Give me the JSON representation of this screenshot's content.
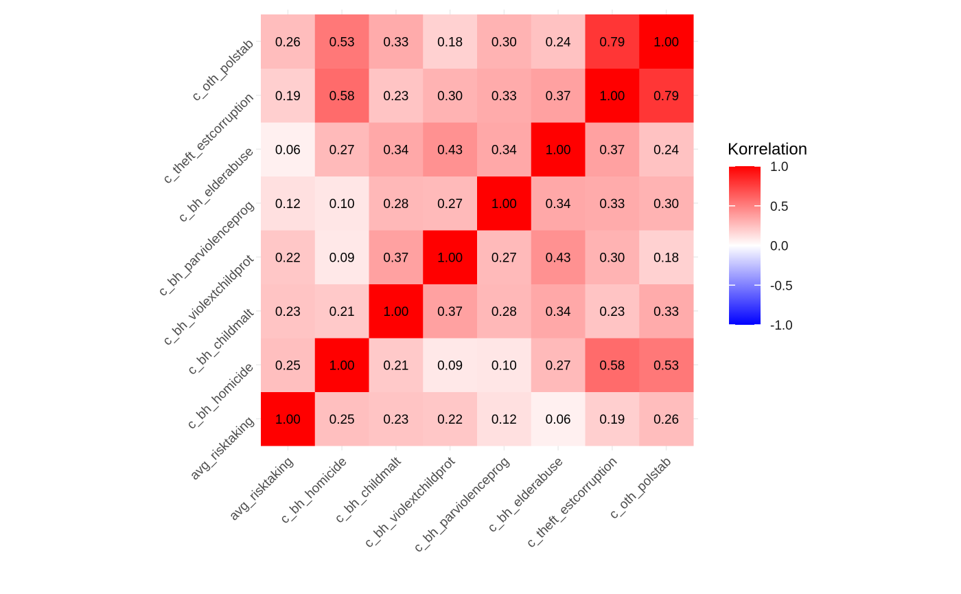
{
  "chart_data": {
    "type": "heatmap",
    "x_categories": [
      "avg_risktaking",
      "c_bh_homicide",
      "c_bh_childmalt",
      "c_bh_violextchildprot",
      "c_bh_parviolenceprog",
      "c_bh_elderabuse",
      "c_theft_estcorruption",
      "c_oth_polstab"
    ],
    "y_categories": [
      "avg_risktaking",
      "c_bh_homicide",
      "c_bh_childmalt",
      "c_bh_violextchildprot",
      "c_bh_parviolenceprog",
      "c_bh_elderabuse",
      "c_theft_estcorruption",
      "c_oth_polstab"
    ],
    "matrix": [
      [
        1.0,
        0.25,
        0.23,
        0.22,
        0.12,
        0.06,
        0.19,
        0.26
      ],
      [
        0.25,
        1.0,
        0.21,
        0.09,
        0.1,
        0.27,
        0.58,
        0.53
      ],
      [
        0.23,
        0.21,
        1.0,
        0.37,
        0.28,
        0.34,
        0.23,
        0.33
      ],
      [
        0.22,
        0.09,
        0.37,
        1.0,
        0.27,
        0.43,
        0.3,
        0.18
      ],
      [
        0.12,
        0.1,
        0.28,
        0.27,
        1.0,
        0.34,
        0.33,
        0.3
      ],
      [
        0.06,
        0.27,
        0.34,
        0.43,
        0.34,
        1.0,
        0.37,
        0.24
      ],
      [
        0.19,
        0.58,
        0.23,
        0.3,
        0.33,
        0.37,
        1.0,
        0.79
      ],
      [
        0.26,
        0.53,
        0.33,
        0.18,
        0.3,
        0.24,
        0.79,
        1.0
      ]
    ],
    "legend": {
      "title": "Korrelation",
      "range": [
        -1.0,
        1.0
      ],
      "ticks": [
        1.0,
        0.5,
        0.0,
        -0.5,
        -1.0
      ],
      "tick_labels": [
        "1.0",
        "0.5",
        "0.0",
        "-0.5",
        "-1.0"
      ],
      "low_color": "#0000ff",
      "mid_color": "#ffffff",
      "high_color": "#ff0000",
      "placement": "right"
    },
    "grid": true,
    "value_format": "2 decimals"
  }
}
